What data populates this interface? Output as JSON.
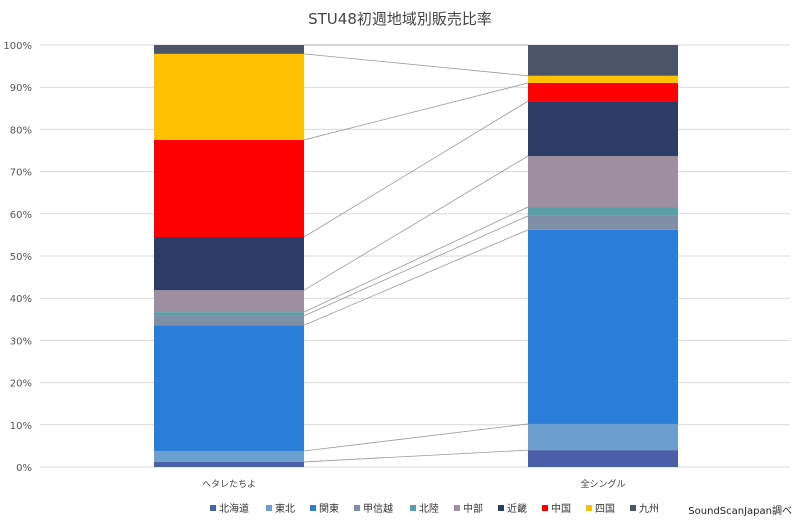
{
  "chart_data": {
    "type": "bar",
    "stacked": "percent",
    "title": "STU48初週地域別販売比率",
    "categories": [
      "ヘタレたちよ",
      "全シングル"
    ],
    "ylim": [
      0,
      100
    ],
    "yticks": [
      "0%",
      "10%",
      "20%",
      "30%",
      "40%",
      "50%",
      "60%",
      "70%",
      "80%",
      "90%",
      "100%"
    ],
    "grid": true,
    "legend_position": "bottom",
    "series_lines": true,
    "series": [
      {
        "name": "北海道",
        "color": "#4a5fa8",
        "values": [
          1.2,
          4.0
        ]
      },
      {
        "name": "東北",
        "color": "#6a9fd0",
        "values": [
          2.6,
          6.2
        ]
      },
      {
        "name": "関東",
        "color": "#2a7dd8",
        "values": [
          29.8,
          46.0
        ]
      },
      {
        "name": "甲信越",
        "color": "#7f8fa8",
        "values": [
          2.2,
          3.3
        ]
      },
      {
        "name": "北陸",
        "color": "#5a9fa8",
        "values": [
          0.9,
          2.1
        ]
      },
      {
        "name": "中部",
        "color": "#9e8fa0",
        "values": [
          5.2,
          12.1
        ]
      },
      {
        "name": "近畿",
        "color": "#2c3c66",
        "values": [
          12.6,
          13.0
        ]
      },
      {
        "name": "中国",
        "color": "#ff0000",
        "values": [
          23.0,
          4.3
        ]
      },
      {
        "name": "四国",
        "color": "#ffc000",
        "values": [
          20.4,
          1.7
        ]
      },
      {
        "name": "九州",
        "color": "#4a5668",
        "values": [
          2.1,
          7.3
        ]
      }
    ]
  },
  "source_note": "SoundScanJapan調べ"
}
